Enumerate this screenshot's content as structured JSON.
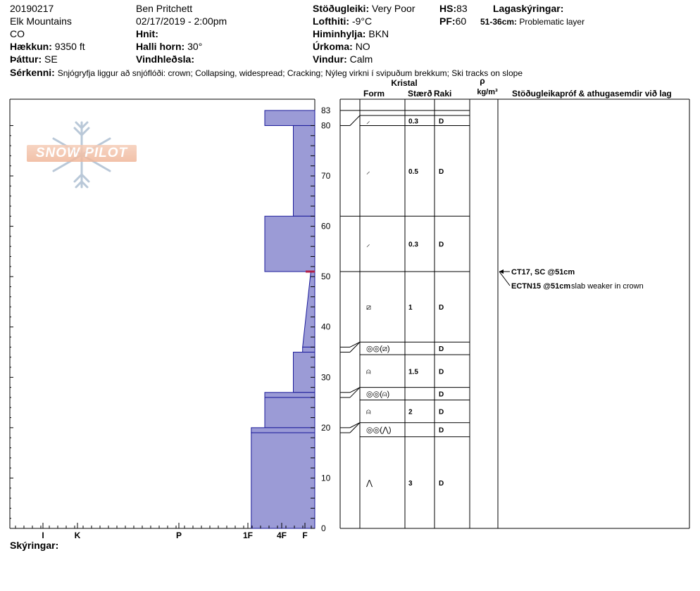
{
  "header": {
    "date": "20190217",
    "location": "Elk Mountains",
    "state": "CO",
    "elevation_label": "Hækkun:",
    "elevation": "9350 ft",
    "aspect_label": "Þáttur:",
    "aspect": "SE",
    "observer": "Ben Pritchett",
    "datetime": "02/17/2019 - 2:00pm",
    "coords_label": "Hnit:",
    "coords": "",
    "slope_label": "Halli horn:",
    "slope": "30°",
    "wind_loading_label": "Vindhleðsla:",
    "wind_loading": "",
    "stability_label": "Stöðugleiki:",
    "stability": "Very Poor",
    "air_temp_label": "Lofthiti:",
    "air_temp": "-9°C",
    "sky_label": "Himinhylja:",
    "sky": "BKN",
    "precip_label": "Úrkoma:",
    "precip": "NO",
    "wind_label": "Vindur:",
    "wind": "Calm",
    "hs_label": "HS:",
    "hs": "83",
    "pf_label": "PF:",
    "pf": "60",
    "layer_notes_label": "Lagaskýringar:",
    "problem_range": "51-36cm:",
    "problem_text": "Problematic layer",
    "features_label": "Sérkenni:",
    "features": "Snjógryfja liggur að snjóflóði: crown; Collapsing, widespread; Cracking; Nýleg virkni í svipuðum brekkum; Ski tracks on slope"
  },
  "logo": {
    "text": "SNOW PILOT"
  },
  "columns": {
    "crystal": "Kristal",
    "form": "Form",
    "size": "Stærð",
    "moisture": "Raki",
    "rho": "ρ",
    "density_unit": "kg/m³",
    "tests": "Stöðugleikapróf & athugasemdir við lag"
  },
  "footer": {
    "comments_label": "Skýringar:"
  },
  "chart_data": {
    "type": "bar",
    "title": "",
    "ylabel": "",
    "xlabel": "",
    "ylim": [
      0,
      83
    ],
    "y_ticks": [
      0,
      10,
      20,
      30,
      40,
      50,
      60,
      70,
      80
    ],
    "top_label": "83",
    "hardness_ticks": [
      "I",
      "K",
      "P",
      "1F",
      "4F",
      "F"
    ],
    "hardness_scale_note": "hardness index: F=1, 4F=2, 1F=3, P=4, K=5, I=6",
    "layers": [
      {
        "top": 83,
        "bottom": 80,
        "hardness": 2.5
      },
      {
        "top": 80,
        "bottom": 62,
        "hardness": 1.5
      },
      {
        "top": 62,
        "bottom": 51,
        "hardness": 2.5
      },
      {
        "top": 51,
        "bottom": 36,
        "hardness_top": 0.4,
        "hardness_bottom": 1.1,
        "sloped": true
      },
      {
        "top": 36,
        "bottom": 35,
        "hardness": 1.1
      },
      {
        "top": 35,
        "bottom": 27,
        "hardness": 1.5
      },
      {
        "top": 27,
        "bottom": 26,
        "hardness": 2.5
      },
      {
        "top": 26,
        "bottom": 20,
        "hardness": 2.5
      },
      {
        "top": 20,
        "bottom": 19,
        "hardness": 2.9
      },
      {
        "top": 19,
        "bottom": 0,
        "hardness": 2.9
      }
    ],
    "weak_layer_depth": 51,
    "table_rows": [
      {
        "top": 83,
        "bottom": 82,
        "form": "",
        "size": "",
        "moisture": ""
      },
      {
        "top": 82,
        "bottom": 80,
        "form": "⸝",
        "size": "0.3",
        "moisture": "D"
      },
      {
        "top": 80,
        "bottom": 62,
        "form": "⸝",
        "size": "0.5",
        "moisture": "D"
      },
      {
        "top": 62,
        "bottom": 51,
        "form": "⸝",
        "size": "0.3",
        "moisture": "D"
      },
      {
        "top": 51,
        "bottom": 37,
        "form": "⧄",
        "size": "1",
        "moisture": "D"
      },
      {
        "top": 37,
        "bottom": 34.5,
        "form": "◎◎(⧄)",
        "size": "",
        "moisture": "D"
      },
      {
        "top": 34.5,
        "bottom": 28,
        "form": "⍝",
        "size": "1.5",
        "moisture": "D"
      },
      {
        "top": 28,
        "bottom": 25.5,
        "form": "◎◎(⍝)",
        "size": "",
        "moisture": "D"
      },
      {
        "top": 25.5,
        "bottom": 21,
        "form": "⍝",
        "size": "2",
        "moisture": "D"
      },
      {
        "top": 21,
        "bottom": 18.2,
        "form": "◎◎(⋀)",
        "size": "",
        "moisture": "D"
      },
      {
        "top": 18.2,
        "bottom": 0,
        "form": "⋀",
        "size": "3",
        "moisture": "D"
      }
    ],
    "tests": [
      {
        "depth": 51,
        "code": "CT17, SC @51cm",
        "note": ""
      },
      {
        "depth": 51,
        "code": "ECTN15 @51cm",
        "note": "slab weaker in crown"
      }
    ]
  }
}
